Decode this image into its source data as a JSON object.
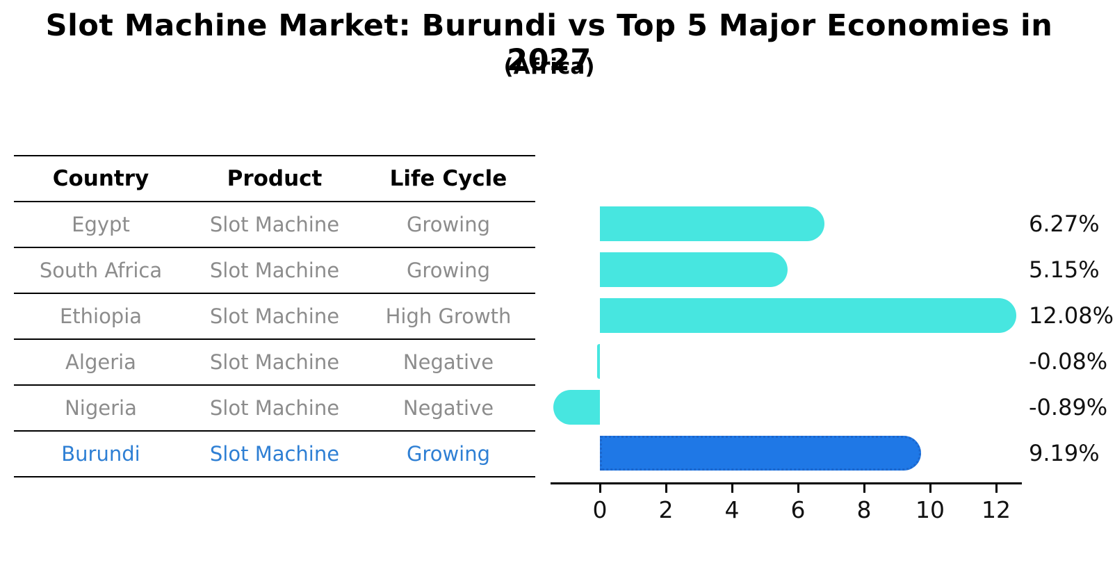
{
  "title": "Slot Machine Market: Burundi vs Top 5 Major Economies in 2027",
  "subtitle": "(Africa)",
  "table": {
    "headers": [
      "Country",
      "Product",
      "Life Cycle"
    ],
    "rows": [
      {
        "country": "Egypt",
        "product": "Slot Machine",
        "life_cycle": "Growing",
        "highlight": false
      },
      {
        "country": "South Africa",
        "product": "Slot Machine",
        "life_cycle": "Growing",
        "highlight": false
      },
      {
        "country": "Ethiopia",
        "product": "Slot Machine",
        "life_cycle": "High Growth",
        "highlight": false
      },
      {
        "country": "Algeria",
        "product": "Slot Machine",
        "life_cycle": "Negative",
        "highlight": false
      },
      {
        "country": "Nigeria",
        "product": "Slot Machine",
        "life_cycle": "Negative",
        "highlight": false
      },
      {
        "country": "Burundi",
        "product": "Slot Machine",
        "life_cycle": "Growing",
        "highlight": true
      }
    ]
  },
  "chart_data": {
    "type": "bar",
    "orientation": "horizontal",
    "categories": [
      "Egypt",
      "South Africa",
      "Ethiopia",
      "Algeria",
      "Nigeria",
      "Burundi"
    ],
    "values": [
      6.27,
      5.15,
      12.08,
      -0.08,
      -0.89,
      9.19
    ],
    "value_labels": [
      "6.27%",
      "5.15%",
      "12.08%",
      "-0.08%",
      "-0.89%",
      "9.19%"
    ],
    "xticks": [
      0,
      2,
      4,
      6,
      8,
      10,
      12
    ],
    "xlim": [
      -1.5,
      12.8
    ],
    "grid": false,
    "legend": "none",
    "bar_color": "#47E6E0",
    "highlight_color": "#1F78E6",
    "highlight_border_color": "#1b66cc",
    "highlight_index": 5
  },
  "colors": {
    "title_text": "#000000",
    "table_header_text": "#000000",
    "table_row_text": "#8c8c8c",
    "highlight_row_text": "#2e7fd4",
    "axis_text": "#111111",
    "line": "#000000",
    "background": "#ffffff"
  }
}
